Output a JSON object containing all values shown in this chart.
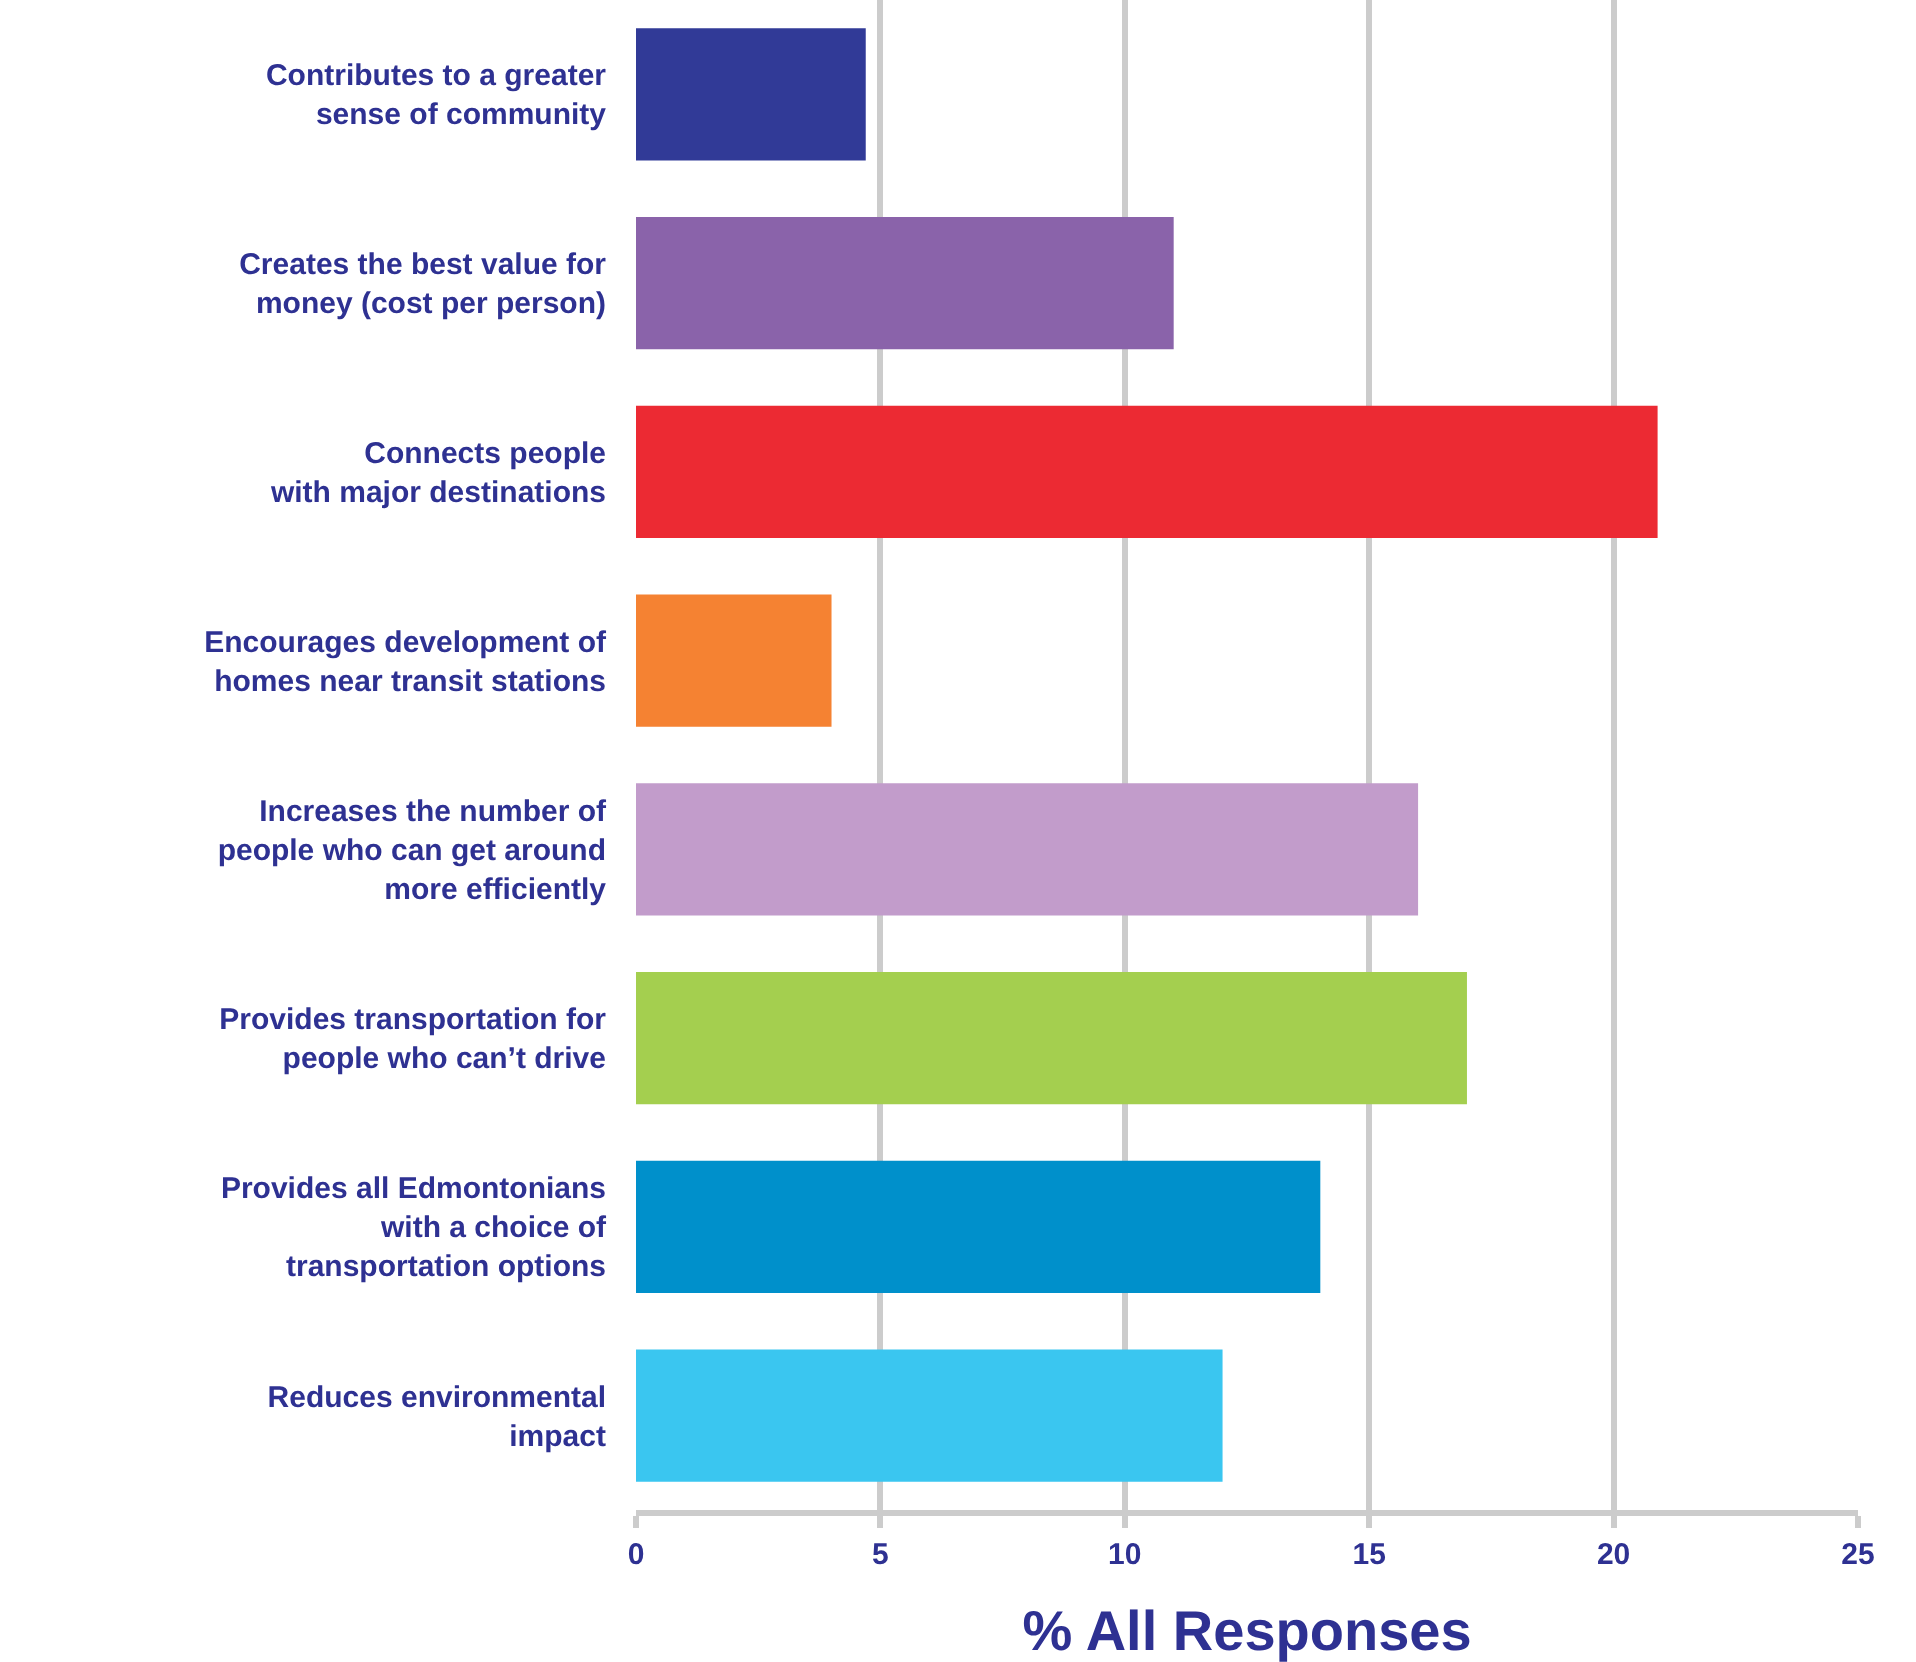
{
  "chart_data": {
    "type": "bar",
    "orientation": "horizontal",
    "categories": [
      "Contributes to a greater\nsense of community",
      "Creates the best value for\nmoney (cost per person)",
      "Connects people\nwith major destinations",
      "Encourages development of\nhomes near transit stations",
      "Increases the number of\npeople who can get around\nmore efficiently",
      "Provides transportation for\npeople who can’t drive",
      "Provides all Edmontonians\nwith a choice of\ntransportation options",
      "Reduces environmental\nimpact"
    ],
    "values": [
      4.7,
      11.0,
      20.9,
      4.0,
      16.0,
      17.0,
      14.0,
      12.0
    ],
    "colors": [
      "#313a97",
      "#8a63aa",
      "#ec2a33",
      "#f58232",
      "#c29ccb",
      "#a4cf4f",
      "#0090cb",
      "#3ac6f0"
    ],
    "xlabel": "% All Responses",
    "xlim": [
      0,
      25
    ],
    "xticks": [
      0,
      5,
      10,
      15,
      20,
      25
    ],
    "grid": "x"
  }
}
